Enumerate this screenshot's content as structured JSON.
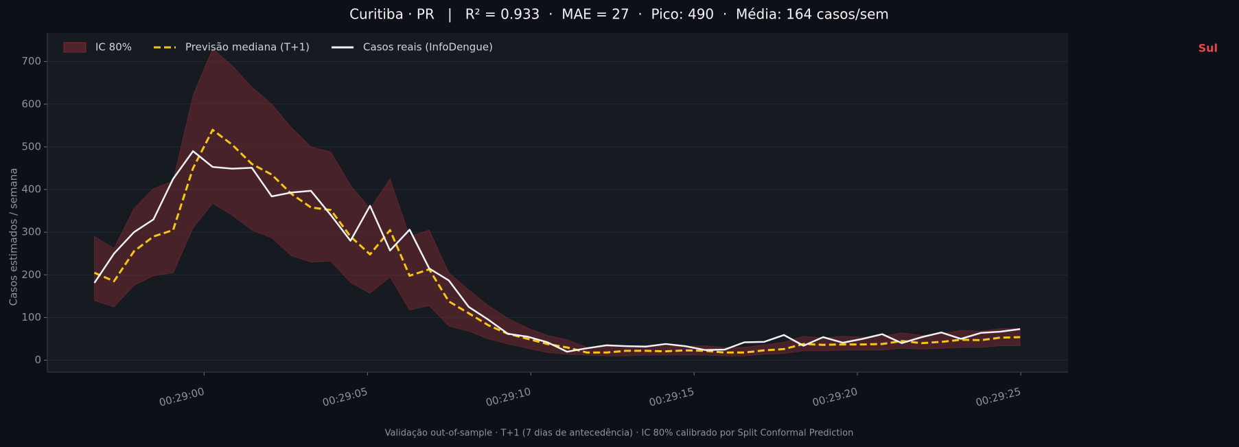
{
  "chart_data": {
    "type": "line",
    "title": "Curitiba · PR   |   R² = 0.933  ·  MAE = 27  ·  Pico: 490  ·  Média: 164 casos/sem",
    "ylabel": "Casos estimados / semana",
    "annotation": "Sul",
    "annotation_color": "#e5484d",
    "footer": "Validação out-of-sample · T+1 (7 dias de antecedência) · IC 80% calibrado por Split Conformal Prediction",
    "legend": "upper left",
    "grid": true,
    "xlim": [
      1735.2,
      1766.45
    ],
    "xticks": [
      {
        "value": 1740,
        "label": "00:29:00"
      },
      {
        "value": 1745,
        "label": "00:29:05"
      },
      {
        "value": 1750,
        "label": "00:29:10"
      },
      {
        "value": 1755,
        "label": "00:29:15"
      },
      {
        "value": 1760,
        "label": "00:29:20"
      },
      {
        "value": 1765,
        "label": "00:29:25"
      }
    ],
    "ylim": [
      -28,
      767
    ],
    "yticks": [
      0,
      100,
      200,
      300,
      400,
      500,
      600,
      700
    ],
    "x": [
      1736.64,
      1737.24,
      1737.85,
      1738.45,
      1739.05,
      1739.66,
      1740.26,
      1740.86,
      1741.46,
      1742.07,
      1742.67,
      1743.27,
      1743.88,
      1744.48,
      1745.08,
      1745.69,
      1746.29,
      1746.89,
      1747.49,
      1748.1,
      1748.7,
      1749.3,
      1749.91,
      1750.51,
      1751.11,
      1751.72,
      1752.32,
      1752.92,
      1753.52,
      1754.13,
      1754.73,
      1755.33,
      1755.94,
      1756.54,
      1757.14,
      1757.75,
      1758.35,
      1758.95,
      1759.55,
      1760.16,
      1760.76,
      1761.36,
      1761.97,
      1762.57,
      1763.17,
      1763.78,
      1764.38,
      1764.98
    ],
    "series": [
      {
        "name": "IC 80%",
        "kind": "band",
        "color": "#7a2a30",
        "lower": [
          140,
          125,
          175,
          198,
          205,
          310,
          368,
          340,
          305,
          287,
          245,
          230,
          232,
          182,
          157,
          195,
          118,
          128,
          80,
          68,
          50,
          38,
          28,
          18,
          14,
          12,
          10,
          10,
          12,
          12,
          12,
          12,
          10,
          10,
          14,
          16,
          22,
          22,
          24,
          24,
          24,
          28,
          26,
          28,
          30,
          30,
          34,
          34
        ],
        "upper": [
          290,
          262,
          355,
          402,
          420,
          620,
          730,
          690,
          640,
          600,
          545,
          500,
          488,
          410,
          355,
          425,
          290,
          305,
          205,
          165,
          128,
          98,
          75,
          58,
          48,
          30,
          32,
          34,
          34,
          32,
          33,
          34,
          30,
          30,
          36,
          42,
          56,
          52,
          56,
          54,
          56,
          64,
          58,
          62,
          70,
          68,
          74,
          74
        ]
      },
      {
        "name": "Previsão mediana (T+1)",
        "kind": "dashed",
        "color": "#f5c518",
        "values": [
          205,
          185,
          255,
          290,
          305,
          450,
          540,
          505,
          460,
          435,
          390,
          358,
          352,
          290,
          248,
          305,
          198,
          213,
          138,
          110,
          82,
          62,
          50,
          38,
          30,
          18,
          18,
          22,
          22,
          21,
          23,
          22,
          18,
          18,
          23,
          26,
          38,
          36,
          37,
          37,
          38,
          45,
          40,
          43,
          48,
          47,
          53,
          54
        ]
      },
      {
        "name": "Casos reais (InfoDengue)",
        "kind": "solid",
        "color": "#f0f2f5",
        "values": [
          181,
          250,
          300,
          330,
          425,
          490,
          453,
          449,
          451,
          384,
          393,
          397,
          340,
          280,
          362,
          257,
          306,
          215,
          187,
          125,
          95,
          62,
          55,
          42,
          20,
          28,
          35,
          33,
          32,
          38,
          33,
          24,
          25,
          42,
          43,
          59,
          34,
          54,
          41,
          50,
          61,
          40,
          54,
          65,
          50,
          64,
          67,
          73
        ]
      }
    ]
  }
}
